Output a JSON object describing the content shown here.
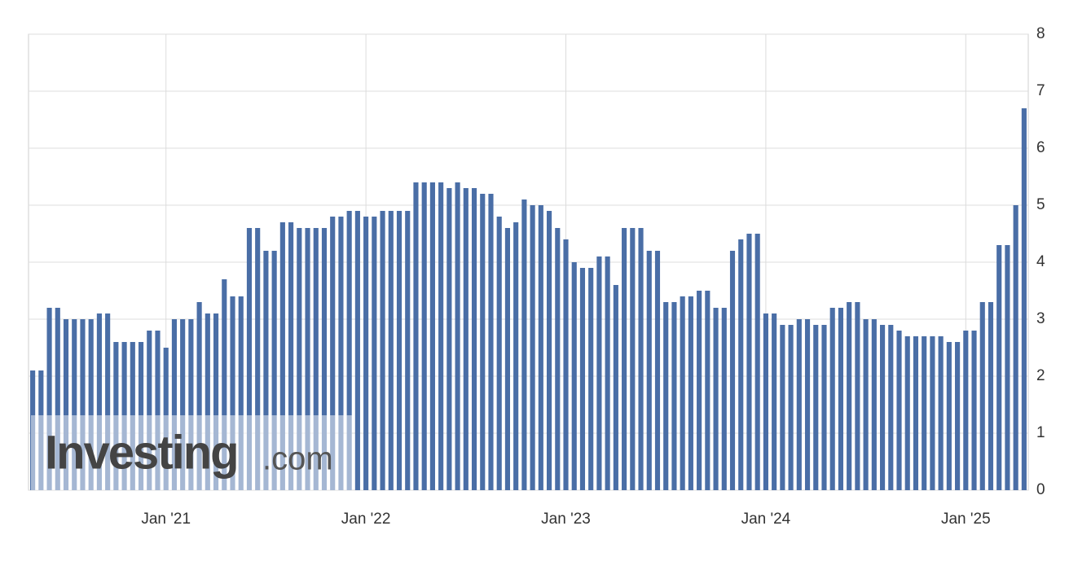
{
  "chart_data": {
    "type": "bar",
    "watermark": [
      "Investing",
      ".com"
    ],
    "categories": [
      null,
      null,
      null,
      null,
      null,
      null,
      null,
      null,
      null,
      null,
      null,
      null,
      null,
      null,
      null,
      null,
      "Jan '21",
      null,
      null,
      null,
      null,
      null,
      null,
      null,
      null,
      null,
      null,
      null,
      null,
      null,
      null,
      null,
      null,
      null,
      null,
      null,
      null,
      null,
      null,
      null,
      "Jan '22",
      null,
      null,
      null,
      null,
      null,
      null,
      null,
      null,
      null,
      null,
      null,
      null,
      null,
      null,
      null,
      null,
      null,
      null,
      null,
      null,
      null,
      null,
      null,
      "Jan '23",
      null,
      null,
      null,
      null,
      null,
      null,
      null,
      null,
      null,
      null,
      null,
      null,
      null,
      null,
      null,
      null,
      null,
      null,
      null,
      null,
      null,
      null,
      null,
      "Jan '24",
      null,
      null,
      null,
      null,
      null,
      null,
      null,
      null,
      null,
      null,
      null,
      null,
      null,
      null,
      null,
      null,
      null,
      null,
      null,
      null,
      null,
      null,
      null,
      "Jan '25",
      null,
      null,
      null,
      null,
      null,
      null,
      null
    ],
    "values": [
      2.1,
      2.1,
      3.2,
      3.2,
      3.0,
      3.0,
      3.0,
      3.0,
      3.1,
      3.1,
      2.6,
      2.6,
      2.6,
      2.6,
      2.8,
      2.8,
      2.5,
      3.0,
      3.0,
      3.0,
      3.3,
      3.1,
      3.1,
      3.7,
      3.4,
      3.4,
      4.6,
      4.6,
      4.2,
      4.2,
      4.7,
      4.7,
      4.6,
      4.6,
      4.6,
      4.6,
      4.8,
      4.8,
      4.9,
      4.9,
      4.8,
      4.8,
      4.9,
      4.9,
      4.9,
      4.9,
      5.4,
      5.4,
      5.4,
      5.4,
      5.3,
      5.4,
      5.3,
      5.3,
      5.2,
      5.2,
      4.8,
      4.6,
      4.7,
      5.1,
      5.0,
      5.0,
      4.9,
      4.6,
      4.4,
      4.0,
      3.9,
      3.9,
      4.1,
      4.1,
      3.6,
      4.6,
      4.6,
      4.6,
      4.2,
      4.2,
      3.3,
      3.3,
      3.4,
      3.4,
      3.5,
      3.5,
      3.2,
      3.2,
      4.2,
      4.4,
      4.5,
      4.5,
      3.1,
      3.1,
      2.9,
      2.9,
      3.0,
      3.0,
      2.9,
      2.9,
      3.2,
      3.2,
      3.3,
      3.3,
      3.0,
      3.0,
      2.9,
      2.9,
      2.8,
      2.7,
      2.7,
      2.7,
      2.7,
      2.7,
      2.6,
      2.6,
      2.8,
      2.8,
      3.3,
      3.3,
      4.3,
      4.3,
      5.0,
      6.7
    ],
    "color": "#4a6ea6",
    "ylim": [
      0,
      8
    ],
    "yticks": [
      0,
      1,
      2,
      3,
      4,
      5,
      6,
      7,
      8
    ],
    "grid": true,
    "y_axis_side": "right"
  }
}
